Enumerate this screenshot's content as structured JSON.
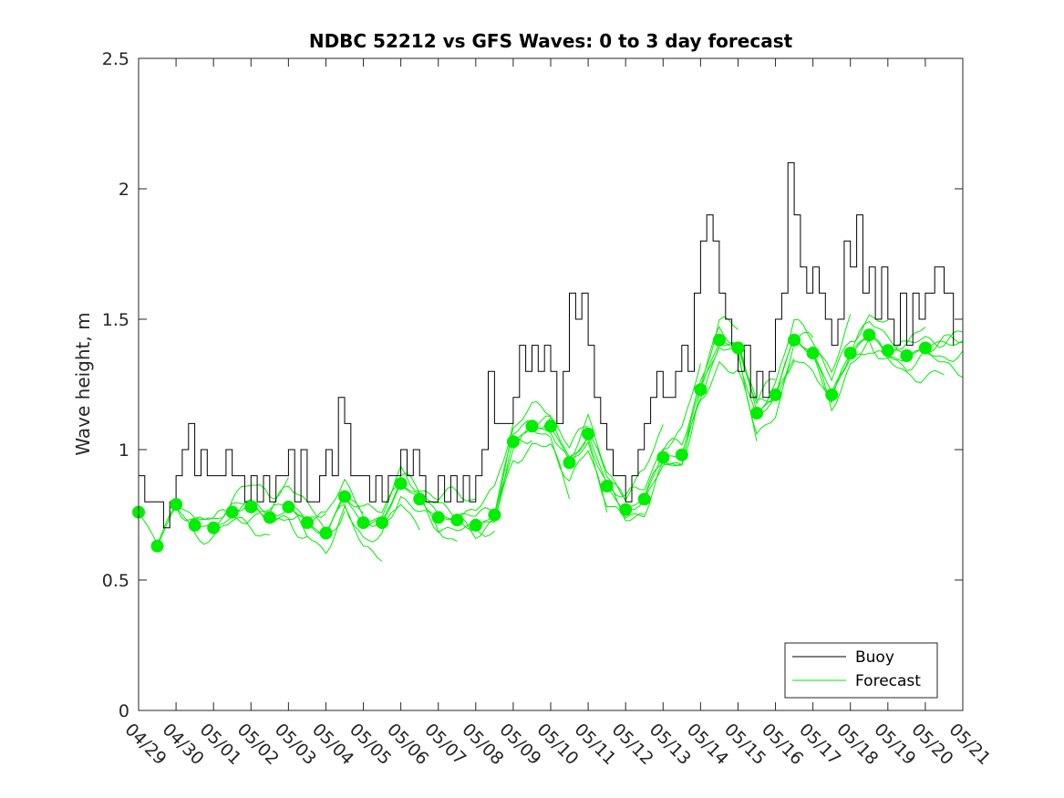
{
  "chart_data": {
    "type": "line",
    "title": "NDBC 52212 vs GFS Waves: 0 to 3 day forecast",
    "xlabel": "",
    "ylabel": "Wave height, m",
    "xlim": [
      "04/29",
      "05/21"
    ],
    "ylim": [
      0,
      2.5
    ],
    "y_ticks": [
      "0",
      "0.5",
      "1",
      "1.5",
      "2",
      "2.5"
    ],
    "x_ticks": [
      "04/29",
      "04/30",
      "05/01",
      "05/02",
      "05/03",
      "05/04",
      "05/05",
      "05/06",
      "05/07",
      "05/08",
      "05/09",
      "05/10",
      "05/11",
      "05/12",
      "05/13",
      "05/14",
      "05/15",
      "05/16",
      "05/17",
      "05/18",
      "05/19",
      "05/20",
      "05/21"
    ],
    "grid": false,
    "legend": {
      "position": "bottom-right",
      "entries": [
        {
          "name": "Buoy",
          "color": "#000000"
        },
        {
          "name": "Forecast",
          "color": "#00ee00"
        }
      ]
    },
    "series": [
      {
        "name": "Buoy",
        "color": "#000000",
        "points": [
          [
            "04/29",
            0.9
          ],
          [
            "04/29",
            0.8
          ],
          [
            "04/29",
            0.8
          ],
          [
            "04/29",
            0.8
          ],
          [
            "04/29",
            0.7
          ],
          [
            "04/29",
            0.8
          ],
          [
            "04/30",
            0.9
          ],
          [
            "04/30",
            1.0
          ],
          [
            "04/30",
            1.1
          ],
          [
            "04/30",
            0.9
          ],
          [
            "04/30",
            1.0
          ],
          [
            "04/30",
            0.9
          ],
          [
            "05/01",
            0.9
          ],
          [
            "05/01",
            0.9
          ],
          [
            "05/01",
            1.0
          ],
          [
            "05/01",
            0.9
          ],
          [
            "05/01",
            0.9
          ],
          [
            "05/01",
            0.8
          ],
          [
            "05/02",
            0.9
          ],
          [
            "05/02",
            0.8
          ],
          [
            "05/02",
            0.9
          ],
          [
            "05/02",
            0.8
          ],
          [
            "05/02",
            0.9
          ],
          [
            "05/02",
            0.9
          ],
          [
            "05/03",
            1.0
          ],
          [
            "05/03",
            0.8
          ],
          [
            "05/03",
            1.0
          ],
          [
            "05/03",
            0.8
          ],
          [
            "05/03",
            0.8
          ],
          [
            "05/03",
            0.9
          ],
          [
            "05/04",
            1.0
          ],
          [
            "05/04",
            0.9
          ],
          [
            "05/04",
            1.2
          ],
          [
            "05/04",
            1.1
          ],
          [
            "05/04",
            0.9
          ],
          [
            "05/04",
            0.9
          ],
          [
            "05/05",
            0.9
          ],
          [
            "05/05",
            0.8
          ],
          [
            "05/05",
            0.9
          ],
          [
            "05/05",
            0.8
          ],
          [
            "05/05",
            0.9
          ],
          [
            "05/05",
            0.9
          ],
          [
            "05/06",
            1.0
          ],
          [
            "05/06",
            0.9
          ],
          [
            "05/06",
            1.0
          ],
          [
            "05/06",
            0.9
          ],
          [
            "05/06",
            0.8
          ],
          [
            "05/06",
            0.8
          ],
          [
            "05/07",
            0.9
          ],
          [
            "05/07",
            0.8
          ],
          [
            "05/07",
            0.9
          ],
          [
            "05/07",
            0.8
          ],
          [
            "05/07",
            0.9
          ],
          [
            "05/07",
            0.8
          ],
          [
            "05/08",
            0.9
          ],
          [
            "05/08",
            1.0
          ],
          [
            "05/08",
            1.3
          ],
          [
            "05/08",
            1.1
          ],
          [
            "05/08",
            1.1
          ],
          [
            "05/08",
            1.1
          ],
          [
            "05/09",
            1.2
          ],
          [
            "05/09",
            1.4
          ],
          [
            "05/09",
            1.3
          ],
          [
            "05/09",
            1.4
          ],
          [
            "05/09",
            1.3
          ],
          [
            "05/09",
            1.4
          ],
          [
            "05/10",
            1.3
          ],
          [
            "05/10",
            1.1
          ],
          [
            "05/10",
            1.3
          ],
          [
            "05/10",
            1.6
          ],
          [
            "05/10",
            1.5
          ],
          [
            "05/10",
            1.6
          ],
          [
            "05/11",
            1.4
          ],
          [
            "05/11",
            1.2
          ],
          [
            "05/11",
            1.1
          ],
          [
            "05/11",
            1.0
          ],
          [
            "05/11",
            0.9
          ],
          [
            "05/11",
            0.9
          ],
          [
            "05/12",
            0.8
          ],
          [
            "05/12",
            0.9
          ],
          [
            "05/12",
            1.0
          ],
          [
            "05/12",
            1.1
          ],
          [
            "05/12",
            1.2
          ],
          [
            "05/12",
            1.3
          ],
          [
            "05/13",
            1.2
          ],
          [
            "05/13",
            1.2
          ],
          [
            "05/13",
            1.3
          ],
          [
            "05/13",
            1.4
          ],
          [
            "05/13",
            1.3
          ],
          [
            "05/13",
            1.6
          ],
          [
            "05/14",
            1.8
          ],
          [
            "05/14",
            1.9
          ],
          [
            "05/14",
            1.8
          ],
          [
            "05/14",
            1.6
          ],
          [
            "05/14",
            1.5
          ],
          [
            "05/14",
            1.4
          ],
          [
            "05/15",
            1.3
          ],
          [
            "05/15",
            1.4
          ],
          [
            "05/15",
            1.2
          ],
          [
            "05/15",
            1.3
          ],
          [
            "05/15",
            1.2
          ],
          [
            "05/15",
            1.3
          ],
          [
            "05/16",
            1.5
          ],
          [
            "05/16",
            1.6
          ],
          [
            "05/16",
            2.1
          ],
          [
            "05/16",
            1.9
          ],
          [
            "05/16",
            1.7
          ],
          [
            "05/16",
            1.6
          ],
          [
            "05/17",
            1.7
          ],
          [
            "05/17",
            1.6
          ],
          [
            "05/17",
            1.5
          ],
          [
            "05/17",
            1.4
          ],
          [
            "05/17",
            1.5
          ],
          [
            "05/17",
            1.8
          ],
          [
            "05/18",
            1.7
          ],
          [
            "05/18",
            1.9
          ],
          [
            "05/18",
            1.6
          ],
          [
            "05/18",
            1.7
          ],
          [
            "05/18",
            1.5
          ],
          [
            "05/18",
            1.7
          ],
          [
            "05/19",
            1.5
          ],
          [
            "05/19",
            1.4
          ],
          [
            "05/19",
            1.6
          ],
          [
            "05/19",
            1.4
          ],
          [
            "05/19",
            1.6
          ],
          [
            "05/19",
            1.5
          ],
          [
            "05/20",
            1.6
          ],
          [
            "05/20",
            1.7
          ],
          [
            "05/20",
            1.6
          ],
          [
            "05/20",
            1.4
          ]
        ]
      },
      {
        "name": "Forecast",
        "color": "#00ee00",
        "markers": [
          [
            "04/29",
            0.76
          ],
          [
            "04/29",
            0.63
          ],
          [
            "04/30",
            0.79
          ],
          [
            "04/30",
            0.71
          ],
          [
            "05/01",
            0.7
          ],
          [
            "05/01",
            0.76
          ],
          [
            "05/02",
            0.78
          ],
          [
            "05/02",
            0.74
          ],
          [
            "05/03",
            0.78
          ],
          [
            "05/03",
            0.72
          ],
          [
            "05/04",
            0.68
          ],
          [
            "05/04",
            0.82
          ],
          [
            "05/05",
            0.72
          ],
          [
            "05/05",
            0.72
          ],
          [
            "05/06",
            0.87
          ],
          [
            "05/06",
            0.81
          ],
          [
            "05/07",
            0.74
          ],
          [
            "05/07",
            0.73
          ],
          [
            "05/08",
            0.71
          ],
          [
            "05/08",
            0.75
          ],
          [
            "05/09",
            1.03
          ],
          [
            "05/09",
            1.09
          ],
          [
            "05/10",
            1.09
          ],
          [
            "05/10",
            0.95
          ],
          [
            "05/11",
            1.06
          ],
          [
            "05/11",
            0.86
          ],
          [
            "05/12",
            0.77
          ],
          [
            "05/12",
            0.81
          ],
          [
            "05/13",
            0.97
          ],
          [
            "05/13",
            0.98
          ],
          [
            "05/14",
            1.23
          ],
          [
            "05/14",
            1.42
          ],
          [
            "05/15",
            1.39
          ],
          [
            "05/15",
            1.14
          ],
          [
            "05/16",
            1.21
          ],
          [
            "05/16",
            1.42
          ],
          [
            "05/17",
            1.37
          ],
          [
            "05/17",
            1.21
          ],
          [
            "05/18",
            1.37
          ],
          [
            "05/18",
            1.44
          ],
          [
            "05/19",
            1.38
          ],
          [
            "05/19",
            1.36
          ],
          [
            "05/20",
            1.39
          ]
        ]
      }
    ]
  }
}
